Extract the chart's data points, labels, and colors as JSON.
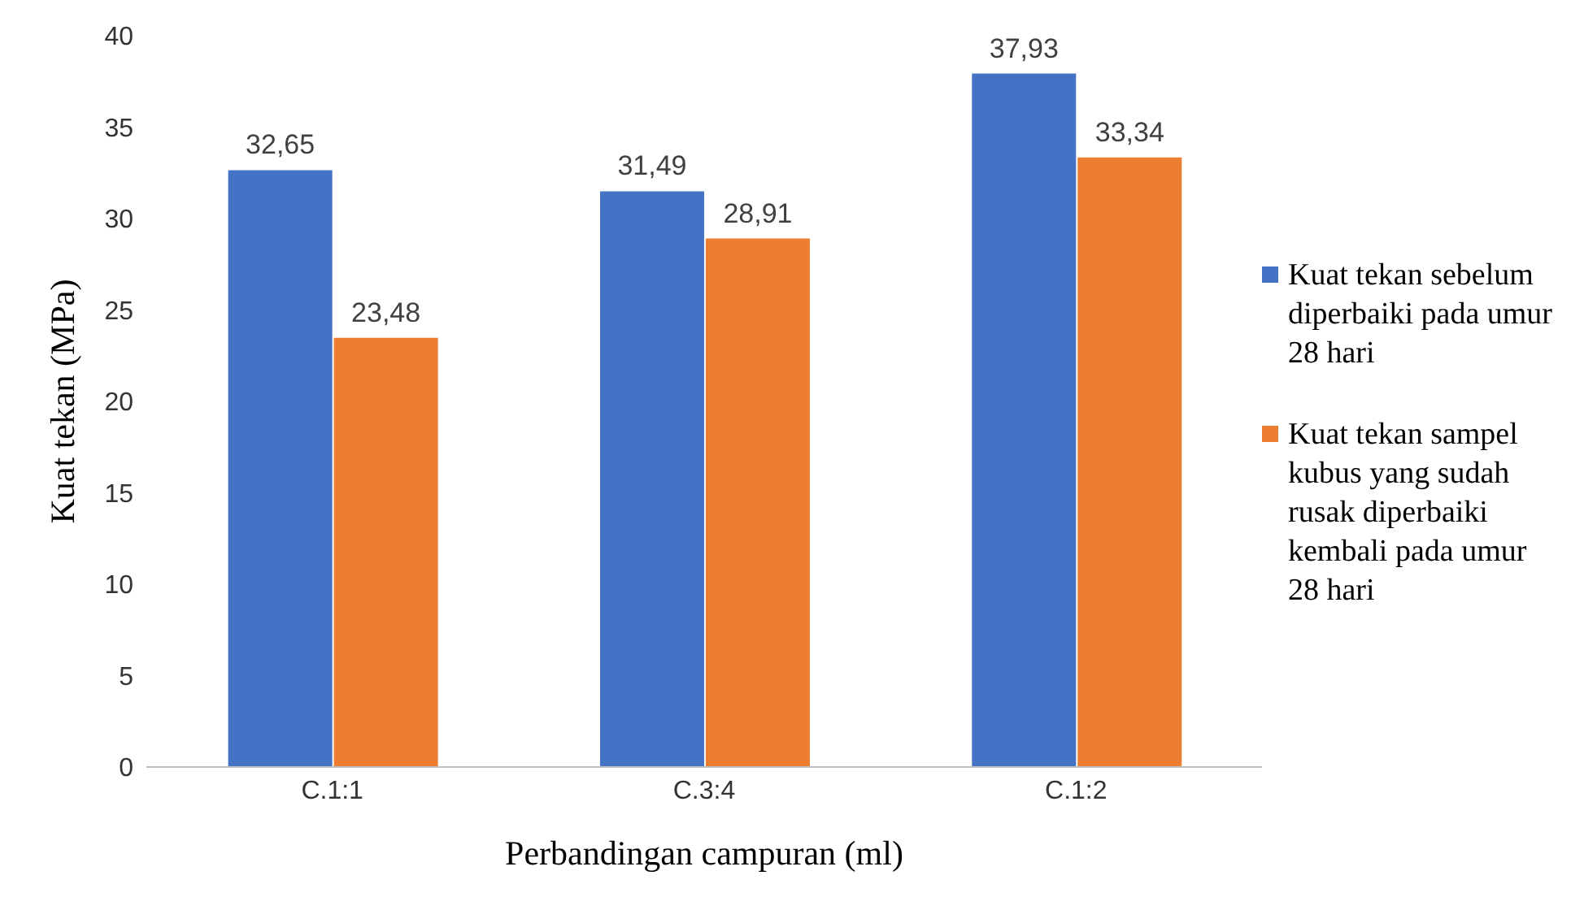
{
  "chart_data": {
    "type": "bar",
    "xlabel": "Perbandingan campuran (ml)",
    "ylabel": "Kuat tekan (MPa)",
    "categories": [
      "C.1:1",
      "C.3:4",
      "C.1:2"
    ],
    "series": [
      {
        "name": "Kuat tekan sebelum diperbaiki pada umur 28 hari",
        "color": "#4472c4",
        "values": [
          32.65,
          31.49,
          37.93
        ],
        "value_labels": [
          "32,65",
          "31,49",
          "37,93"
        ]
      },
      {
        "name": "Kuat tekan sampel kubus yang sudah rusak diperbaiki kembali pada umur 28 hari",
        "color": "#ed7d31",
        "values": [
          23.48,
          28.91,
          33.34
        ],
        "value_labels": [
          "23,48",
          "28,91",
          "33,34"
        ]
      }
    ],
    "ylim": [
      0,
      40
    ],
    "yticks": [
      0,
      5,
      10,
      15,
      20,
      25,
      30,
      35,
      40
    ],
    "grid": false,
    "legend": "right"
  }
}
